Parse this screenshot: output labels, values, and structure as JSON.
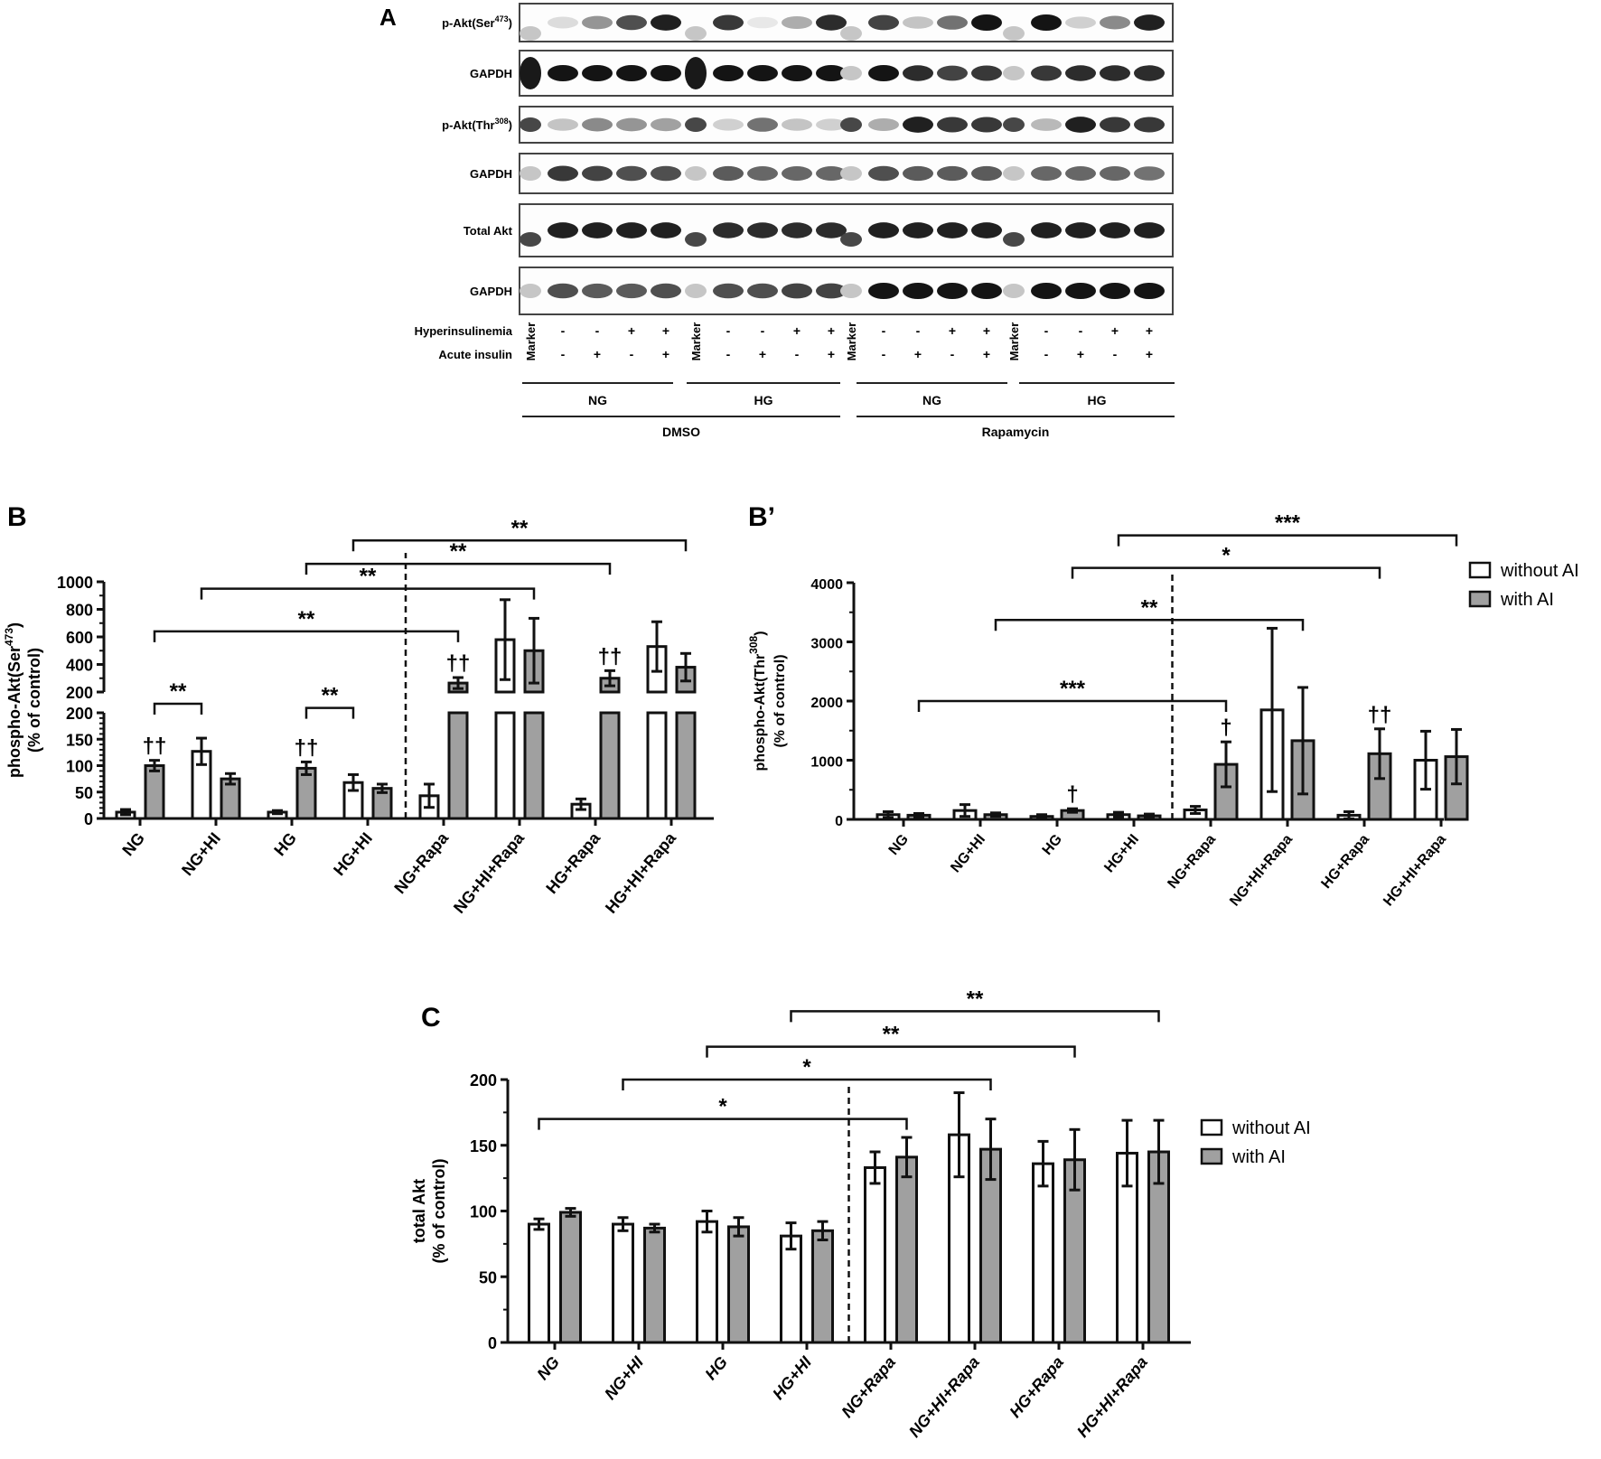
{
  "panel_a": {
    "label": "A",
    "blots": [
      {
        "name": "p-Akt(Ser",
        "sup": "473",
        "suffix": ")",
        "y": 4,
        "h": 42
      },
      {
        "name": "GAPDH",
        "sup": "",
        "suffix": "",
        "y": 56,
        "h": 50
      },
      {
        "name": "p-Akt(Thr",
        "sup": "308",
        "suffix": ")",
        "y": 118,
        "h": 40
      },
      {
        "name": "GAPDH",
        "sup": "",
        "suffix": "",
        "y": 170,
        "h": 44
      },
      {
        "name": "Total Akt",
        "sup": "",
        "suffix": "",
        "y": 226,
        "h": 58
      },
      {
        "name": "GAPDH",
        "sup": "",
        "suffix": "",
        "y": 296,
        "h": 52
      }
    ],
    "band_intensity": [
      [
        0.15,
        0.45,
        0.75,
        0.95,
        0.85,
        0.1,
        0.35,
        0.9,
        0.8,
        0.25,
        0.6,
        1,
        1,
        0.2,
        0.5,
        0.95,
        0.95
      ],
      [
        1,
        1,
        1,
        1,
        1,
        1,
        1,
        1,
        1,
        0.9,
        0.8,
        0.85,
        0.85,
        0.9,
        0.9,
        0.9,
        0.9
      ],
      [
        0.25,
        0.5,
        0.45,
        0.4,
        0.2,
        0.6,
        0.25,
        0.2,
        0.35,
        0.95,
        0.85,
        0.85,
        0.3,
        0.95,
        0.85,
        0.85
      ],
      [
        0.85,
        0.8,
        0.75,
        0.75,
        0.7,
        0.65,
        0.65,
        0.65,
        0.75,
        0.7,
        0.7,
        0.7,
        0.65,
        0.65,
        0.65,
        0.6
      ],
      [
        0.95,
        0.95,
        0.95,
        0.95,
        0.9,
        0.9,
        0.9,
        0.9,
        0.95,
        0.95,
        0.95,
        0.95,
        0.95,
        0.95,
        0.95,
        0.95
      ],
      [
        0.75,
        0.7,
        0.7,
        0.75,
        0.75,
        0.75,
        0.8,
        0.8,
        1,
        1,
        1,
        1,
        1,
        1,
        1,
        1
      ]
    ],
    "row_labels": {
      "hyperinsulinemia": "Hyperinsulinemia",
      "acute_insulin": "Acute insulin"
    },
    "marker_label": "Marker",
    "hyperinsulinemia": [
      "-",
      "-",
      "+",
      "+"
    ],
    "acute_insulin": [
      "-",
      "+",
      "-",
      "+"
    ],
    "glucose_groups": [
      "NG",
      "HG",
      "NG",
      "HG"
    ],
    "treatment_groups": [
      "DMSO",
      "Rapamycin"
    ]
  },
  "chart_data": [
    {
      "id": "B",
      "panel_label": "B",
      "type": "bar",
      "ylabel": "phospho-Akt(Ser473)",
      "ylabel_line1": "phospho-Akt(Ser",
      "ylabel_sup": "473",
      "ylabel_line1_end": ")",
      "ylabel_line2": "(% of control)",
      "broken_axis": true,
      "lower_segment": {
        "range": [
          0,
          200
        ],
        "ticks": [
          0,
          50,
          100,
          150,
          200
        ]
      },
      "upper_segment": {
        "range": [
          200,
          1000
        ],
        "ticks": [
          200,
          400,
          600,
          800,
          1000
        ]
      },
      "categories": [
        "NG",
        "NG+HI",
        "HG",
        "HG+HI",
        "NG+Rapa",
        "NG+HI+Rapa",
        "HG+Rapa",
        "HG+HI+Rapa"
      ],
      "series": [
        {
          "name": "without AI",
          "color": "#ffffff",
          "values": [
            12,
            127,
            12,
            68,
            43,
            580,
            27,
            530
          ],
          "errors": [
            5,
            25,
            3,
            15,
            22,
            290,
            10,
            180
          ]
        },
        {
          "name": "with AI",
          "color": "#a0a0a0",
          "values": [
            100,
            75,
            95,
            57,
            265,
            500,
            300,
            380
          ],
          "errors": [
            10,
            10,
            12,
            8,
            40,
            235,
            55,
            100
          ]
        }
      ],
      "dagger_marks": [
        {
          "category": 0,
          "series": 1,
          "text": "††"
        },
        {
          "category": 2,
          "series": 1,
          "text": "††"
        },
        {
          "category": 4,
          "series": 1,
          "text": "††"
        },
        {
          "category": 6,
          "series": 1,
          "text": "††"
        }
      ],
      "significance": [
        {
          "from": [
            0,
            1
          ],
          "to": [
            1,
            0
          ],
          "text": "**",
          "y": 183
        },
        {
          "from": [
            2,
            1
          ],
          "to": [
            3,
            0
          ],
          "text": "**",
          "y": 175
        },
        {
          "from": [
            0,
            1
          ],
          "to": [
            4,
            1
          ],
          "text": "**",
          "y": 640
        },
        {
          "from": [
            1,
            0
          ],
          "to": [
            5,
            1
          ],
          "text": "**",
          "y": 950
        },
        {
          "from": [
            2,
            1
          ],
          "to": [
            6,
            1
          ],
          "text": "**",
          "y": 1130
        },
        {
          "from": [
            3,
            0
          ],
          "to": [
            7,
            1
          ],
          "text": "**",
          "y": 1300
        }
      ],
      "divider_after_category": 3,
      "legend": []
    },
    {
      "id": "Bprime",
      "panel_label": "B’",
      "type": "bar",
      "ylabel": "phospho-Akt(Thr308)",
      "ylabel_line1": "phospho-Akt(Thr",
      "ylabel_sup": "308",
      "ylabel_line1_end": ")",
      "ylabel_line2": "(% of control)",
      "broken_axis": false,
      "ylim": [
        0,
        4000
      ],
      "ticks": [
        0,
        1000,
        2000,
        3000,
        4000
      ],
      "minor_ticks": [
        500,
        1500,
        2500,
        3500
      ],
      "categories": [
        "NG",
        "NG+HI",
        "HG",
        "HG+HI",
        "NG+Rapa",
        "NG+HI+Rapa",
        "HG+Rapa",
        "HG+HI+Rapa"
      ],
      "series": [
        {
          "name": "without AI",
          "color": "#ffffff",
          "values": [
            80,
            150,
            50,
            80,
            160,
            1850,
            70,
            1000
          ],
          "errors": [
            50,
            100,
            30,
            40,
            60,
            1380,
            60,
            490
          ]
        },
        {
          "name": "with AI",
          "color": "#a0a0a0",
          "values": [
            70,
            80,
            150,
            60,
            930,
            1330,
            1110,
            1060
          ],
          "errors": [
            30,
            30,
            30,
            30,
            380,
            900,
            420,
            460
          ]
        }
      ],
      "dagger_marks": [
        {
          "category": 2,
          "series": 1,
          "text": "†"
        },
        {
          "category": 4,
          "series": 1,
          "text": "†"
        },
        {
          "category": 6,
          "series": 1,
          "text": "††"
        }
      ],
      "significance": [
        {
          "from": [
            0,
            1
          ],
          "to": [
            4,
            1
          ],
          "text": "***",
          "y": 2000
        },
        {
          "from": [
            1,
            1
          ],
          "to": [
            5,
            1
          ],
          "text": "**",
          "y": 3370
        },
        {
          "from": [
            2,
            1
          ],
          "to": [
            6,
            1
          ],
          "text": "*",
          "y": 4250
        },
        {
          "from": [
            3,
            0
          ],
          "to": [
            7,
            1
          ],
          "text": "***",
          "y": 4800
        }
      ],
      "divider_after_category": 3,
      "legend": [
        "without AI",
        "with AI"
      ]
    },
    {
      "id": "C",
      "panel_label": "C",
      "type": "bar",
      "ylabel": "total Akt",
      "ylabel_line1": "total Akt",
      "ylabel_sup": "",
      "ylabel_line1_end": "",
      "ylabel_line2": "(% of control)",
      "broken_axis": false,
      "ylim": [
        0,
        200
      ],
      "ticks": [
        0,
        50,
        100,
        150,
        200
      ],
      "minor_ticks": [
        25,
        75,
        125,
        175
      ],
      "categories": [
        "NG",
        "NG+HI",
        "HG",
        "HG+HI",
        "NG+Rapa",
        "NG+HI+Rapa",
        "HG+Rapa",
        "HG+HI+Rapa"
      ],
      "series": [
        {
          "name": "without AI",
          "color": "#ffffff",
          "values": [
            90,
            90,
            92,
            81,
            133,
            158,
            136,
            144
          ],
          "errors": [
            4,
            5,
            8,
            10,
            12,
            32,
            17,
            25
          ]
        },
        {
          "name": "with AI",
          "color": "#a0a0a0",
          "values": [
            99,
            87,
            88,
            85,
            141,
            147,
            139,
            145
          ],
          "errors": [
            3,
            3,
            7,
            7,
            15,
            23,
            23,
            24
          ]
        }
      ],
      "dagger_marks": [],
      "significance": [
        {
          "from": [
            0,
            0
          ],
          "to": [
            4,
            1
          ],
          "text": "*",
          "y": 170
        },
        {
          "from": [
            1,
            0
          ],
          "to": [
            5,
            1
          ],
          "text": "*",
          "y": 200
        },
        {
          "from": [
            2,
            0
          ],
          "to": [
            6,
            1
          ],
          "text": "**",
          "y": 225
        },
        {
          "from": [
            3,
            0
          ],
          "to": [
            7,
            1
          ],
          "text": "**",
          "y": 252
        }
      ],
      "divider_after_category": 3,
      "legend": [
        "without AI",
        "with AI"
      ]
    }
  ]
}
